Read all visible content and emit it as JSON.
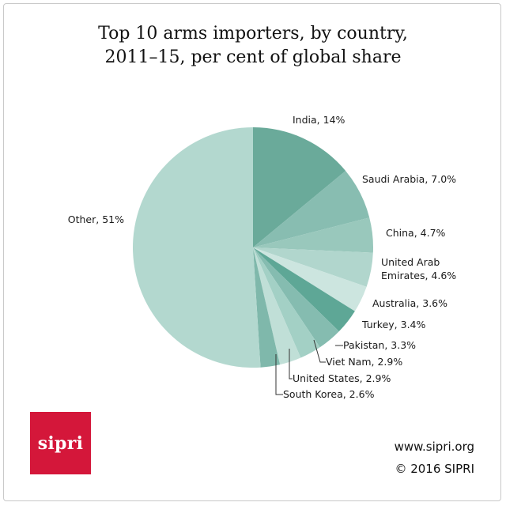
{
  "chart_data": {
    "type": "pie",
    "title": [
      "Top 10 arms importers, by country,",
      "2011–15, per cent of global share"
    ],
    "slices": [
      {
        "label": "India, 14%",
        "value": 14.0,
        "color": "#6aaa9a"
      },
      {
        "label": "Saudi Arabia, 7.0%",
        "value": 7.0,
        "color": "#88bdb1"
      },
      {
        "label": "China, 4.7%",
        "value": 4.7,
        "color": "#99c8bc"
      },
      {
        "label": [
          "United Arab",
          "Emirates, 4.6%"
        ],
        "value": 4.6,
        "color": "#b1d6cd"
      },
      {
        "label": "Australia, 3.6%",
        "value": 3.6,
        "color": "#cce5df"
      },
      {
        "label": "Turkey, 3.4%",
        "value": 3.4,
        "color": "#5ea796"
      },
      {
        "label": "Pakistan, 3.3%",
        "value": 3.3,
        "color": "#85bcb0"
      },
      {
        "label": "Viet Nam, 2.9%",
        "value": 2.9,
        "color": "#a3d0c5"
      },
      {
        "label": "United States, 2.9%",
        "value": 2.9,
        "color": "#c0dfd7"
      },
      {
        "label": "South Korea, 2.6%",
        "value": 2.6,
        "color": "#7fb8ab"
      },
      {
        "label": "Other, 51%",
        "value": 51.0,
        "color": "#b3d8cf"
      }
    ]
  },
  "footer": {
    "url": "www.sipri.org",
    "copyright": "© 2016 SIPRI"
  },
  "logo": {
    "text": "sipri",
    "color": "#d4173a"
  }
}
